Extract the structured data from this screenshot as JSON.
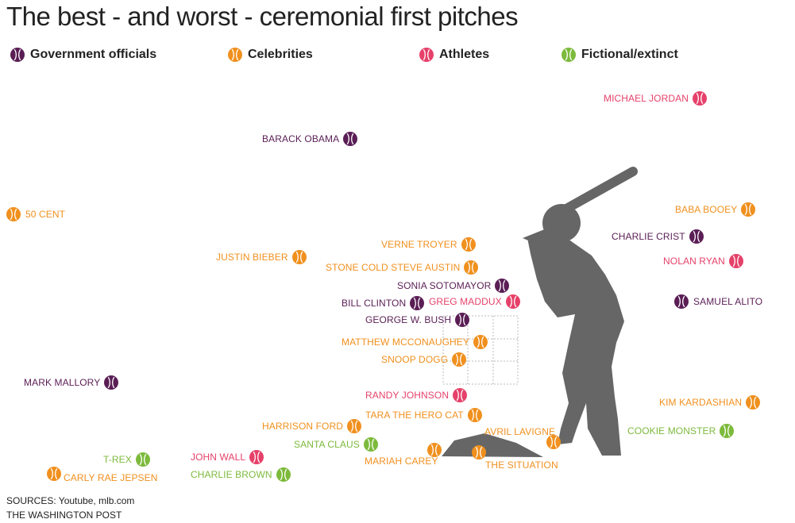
{
  "title": "The best - and worst - ceremonial first pitches",
  "legend": [
    {
      "key": "gov",
      "label": "Government officials"
    },
    {
      "key": "celeb",
      "label": "Celebrities"
    },
    {
      "key": "ath",
      "label": "Athletes"
    },
    {
      "key": "fic",
      "label": "Fictional/extinct"
    }
  ],
  "colors": {
    "gov": "#5a1e55",
    "celeb": "#f0901e",
    "ath": "#e6416a",
    "fic": "#7dba3c",
    "silhouette": "#666666",
    "strike_zone": "#bbbbbb"
  },
  "pitches": [
    {
      "name": "MICHAEL JORDAN",
      "category": "ath"
    },
    {
      "name": "BARACK OBAMA",
      "category": "gov"
    },
    {
      "name": "50 CENT",
      "category": "celeb"
    },
    {
      "name": "BABA BOOEY",
      "category": "celeb"
    },
    {
      "name": "CHARLIE CRIST",
      "category": "gov"
    },
    {
      "name": "VERNE TROYER",
      "category": "celeb"
    },
    {
      "name": "JUSTIN BIEBER",
      "category": "celeb"
    },
    {
      "name": "NOLAN RYAN",
      "category": "ath"
    },
    {
      "name": "STONE COLD STEVE AUSTIN",
      "category": "celeb"
    },
    {
      "name": "SONIA SOTOMAYOR",
      "category": "gov"
    },
    {
      "name": "BILL CLINTON",
      "category": "gov"
    },
    {
      "name": "GREG MADDUX",
      "category": "ath"
    },
    {
      "name": "SAMUEL ALITO",
      "category": "gov"
    },
    {
      "name": "GEORGE W. BUSH",
      "category": "gov"
    },
    {
      "name": "MATTHEW MCCONAUGHEY",
      "category": "celeb"
    },
    {
      "name": "SNOOP DOGG",
      "category": "celeb"
    },
    {
      "name": "MARK MALLORY",
      "category": "gov"
    },
    {
      "name": "RANDY JOHNSON",
      "category": "ath"
    },
    {
      "name": "KIM KARDASHIAN",
      "category": "celeb"
    },
    {
      "name": "TARA THE HERO CAT",
      "category": "celeb"
    },
    {
      "name": "HARRISON FORD",
      "category": "celeb"
    },
    {
      "name": "COOKIE MONSTER",
      "category": "fic"
    },
    {
      "name": "AVRIL LAVIGNE",
      "category": "celeb"
    },
    {
      "name": "SANTA CLAUS",
      "category": "fic"
    },
    {
      "name": "MARIAH CAREY",
      "category": "celeb"
    },
    {
      "name": "THE SITUATION",
      "category": "celeb"
    },
    {
      "name": "JOHN WALL",
      "category": "ath"
    },
    {
      "name": "T-REX",
      "category": "fic"
    },
    {
      "name": "CARLY RAE JEPSEN",
      "category": "celeb"
    },
    {
      "name": "CHARLIE BROWN",
      "category": "fic"
    }
  ],
  "footer": {
    "sources": "SOURCES: Youtube, mlb.com",
    "credit": "THE WASHINGTON POST"
  }
}
